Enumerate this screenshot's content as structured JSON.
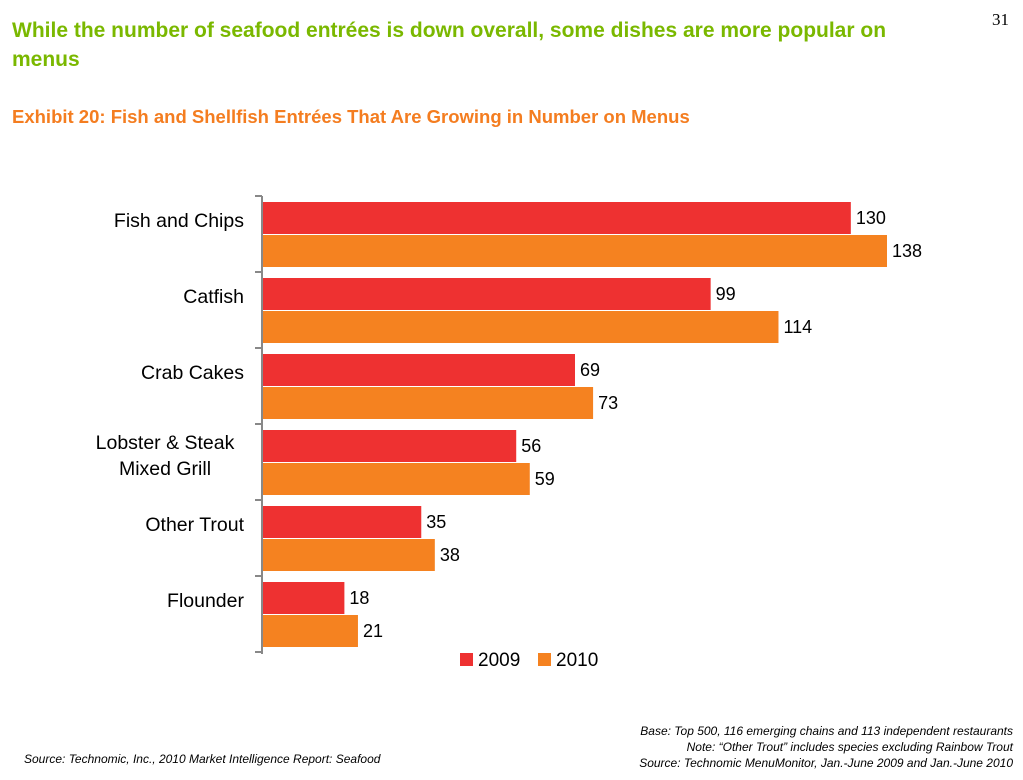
{
  "page": {
    "number": "31",
    "headline": "While the number of seafood entrées is down overall, some dishes are more popular on menus",
    "exhibit_title": "Exhibit 20: Fish and Shellfish Entrées That Are Growing in Number on Menus"
  },
  "chart_data": {
    "type": "bar",
    "orientation": "horizontal",
    "categories": [
      [
        "Fish and Chips"
      ],
      [
        "Catfish"
      ],
      [
        "Crab Cakes"
      ],
      [
        "Lobster & Steak",
        "Mixed Grill"
      ],
      [
        "Other Trout"
      ],
      [
        "Flounder"
      ]
    ],
    "series": [
      {
        "name": "2009",
        "color": "#ee3131",
        "values": [
          130,
          99,
          69,
          56,
          35,
          18
        ]
      },
      {
        "name": "2010",
        "color": "#f58220",
        "values": [
          138,
          114,
          73,
          59,
          38,
          21
        ]
      }
    ],
    "xlim": [
      0,
      138
    ],
    "data_labels": true,
    "grid": false,
    "legend": "bottom"
  },
  "footer": {
    "source_left": "Source: Technomic, Inc., 2010 Market Intelligence Report: Seafood",
    "base": "Base: Top 500, 116 emerging chains and 113 independent restaurants",
    "note": "Note: “Other Trout” includes species excluding Rainbow Trout",
    "source_right": "Source: Technomic MenuMonitor, Jan.-June 2009 and Jan.-June 2010"
  }
}
